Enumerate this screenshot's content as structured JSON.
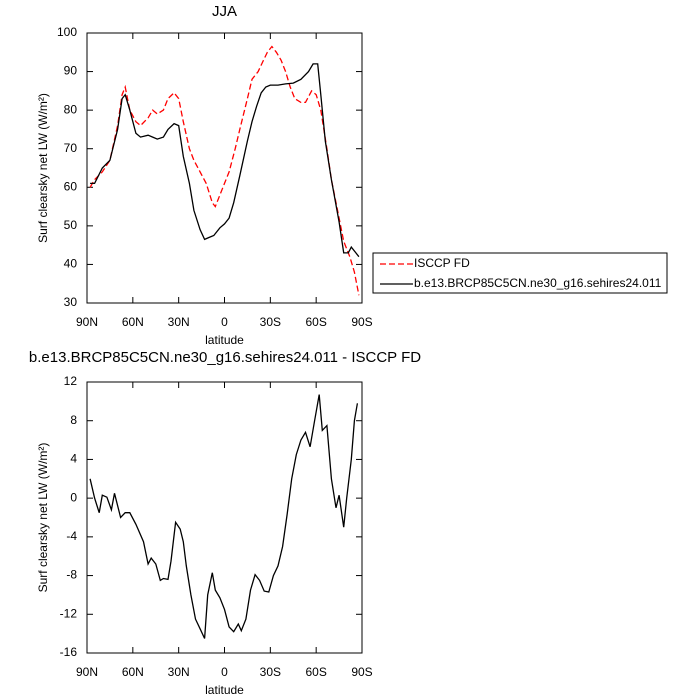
{
  "chart_data": [
    {
      "type": "line",
      "title": "JJA",
      "xlabel": "latitude",
      "ylabel": "Surf clearsky net LW (W/m²)",
      "xlim": [
        90,
        -90
      ],
      "xticks": [
        {
          "value": 90,
          "label": "90N"
        },
        {
          "value": 60,
          "label": "60N"
        },
        {
          "value": 30,
          "label": "30N"
        },
        0,
        {
          "value": -30,
          "label": "30S"
        },
        {
          "value": -60,
          "label": "60S"
        },
        {
          "value": -90,
          "label": "90S"
        }
      ],
      "ylim": [
        30,
        100
      ],
      "yticks": [
        30,
        40,
        50,
        60,
        70,
        80,
        90,
        100
      ],
      "legend": "outside-right",
      "series": [
        {
          "name": "ISCCP FD",
          "color": "#ff0000",
          "line_style": "dashed",
          "x": [
            88,
            85,
            80,
            75,
            70,
            67,
            65,
            62,
            58,
            55,
            50,
            47,
            44,
            40,
            37,
            33,
            30,
            27,
            23,
            20,
            16,
            12,
            8,
            6,
            3,
            0,
            -3,
            -7,
            -10,
            -15,
            -18,
            -22,
            -25,
            -28,
            -31,
            -34,
            -37,
            -40,
            -43,
            -46,
            -50,
            -53,
            -57,
            -60,
            -63,
            -67,
            -70,
            -75,
            -78,
            -82,
            -85,
            -88
          ],
          "values": [
            60,
            62,
            64,
            67,
            76,
            84,
            86,
            80,
            77,
            76,
            78,
            80,
            79,
            80,
            83,
            84.5,
            83,
            77,
            70,
            67,
            64,
            61,
            56,
            55,
            58,
            61,
            64,
            70,
            75,
            83,
            88,
            90,
            92.5,
            95,
            96.5,
            95,
            93,
            90,
            86,
            83,
            82,
            82,
            85,
            84,
            80,
            70,
            62,
            52,
            46,
            42,
            38,
            32
          ]
        },
        {
          "name": "b.e13.BRCP85C5CN.ne30_g16.sehires24.011",
          "color": "#000000",
          "line_style": "solid",
          "x": [
            88,
            85,
            80,
            75,
            70,
            67,
            65,
            62,
            58,
            55,
            50,
            47,
            44,
            40,
            37,
            33,
            30,
            27,
            23,
            20,
            16,
            13,
            10,
            7,
            3,
            0,
            -3,
            -6,
            -10,
            -15,
            -18,
            -21,
            -24,
            -27,
            -30,
            -35,
            -40,
            -45,
            -50,
            -55,
            -58,
            -61,
            -63,
            -66,
            -70,
            -75,
            -78,
            -81,
            -83,
            -86,
            -88
          ],
          "values": [
            61,
            61,
            65,
            67,
            75,
            83,
            84,
            80,
            74,
            73,
            73.5,
            73,
            72.5,
            73,
            75,
            76.5,
            76,
            68,
            61,
            54,
            49,
            46.5,
            47,
            47.5,
            49.5,
            50.5,
            52,
            56,
            63,
            72,
            77,
            81,
            84.5,
            86,
            86.5,
            86.5,
            86.8,
            87,
            88,
            90,
            92,
            92,
            84,
            72,
            62,
            51,
            43,
            43,
            44.5,
            43,
            42
          ]
        }
      ]
    },
    {
      "type": "line",
      "title": "b.e13.BRCP85C5CN.ne30_g16.sehires24.011 - ISCCP FD",
      "xlabel": "latitude",
      "ylabel": "Surf clearsky net LW (W/m²)",
      "xlim": [
        90,
        -90
      ],
      "xticks": [
        {
          "value": 90,
          "label": "90N"
        },
        {
          "value": 60,
          "label": "60N"
        },
        {
          "value": 30,
          "label": "30N"
        },
        0,
        {
          "value": -30,
          "label": "30S"
        },
        {
          "value": -60,
          "label": "60S"
        },
        {
          "value": -90,
          "label": "90S"
        }
      ],
      "ylim": [
        -16,
        12
      ],
      "yticks": [
        -16,
        -12,
        -8,
        -4,
        0,
        4,
        8,
        12
      ],
      "series": [
        {
          "color": "#000000",
          "line_style": "solid",
          "x": [
            88,
            85,
            82,
            80,
            77,
            74,
            72,
            68,
            65,
            62,
            58,
            53,
            50,
            48,
            45,
            42,
            40,
            37,
            35,
            32,
            29,
            27,
            25,
            22,
            19,
            16,
            13,
            11,
            8,
            6,
            3,
            0,
            -3,
            -6,
            -9,
            -11,
            -14,
            -17,
            -20,
            -23,
            -26,
            -29,
            -32,
            -35,
            -38,
            -41,
            -44,
            -47,
            -50,
            -53,
            -56,
            -59,
            -62,
            -64,
            -67,
            -70,
            -73,
            -75,
            -78,
            -80,
            -83,
            -85,
            -87
          ],
          "values": [
            2,
            0,
            -1.5,
            0.3,
            0.1,
            -1.2,
            0.5,
            -2,
            -1.5,
            -1.5,
            -2.7,
            -4.5,
            -6.8,
            -6.2,
            -6.8,
            -8.5,
            -8.3,
            -8.4,
            -6.5,
            -2.5,
            -3.2,
            -4.5,
            -7,
            -10,
            -12.5,
            -13.5,
            -14.5,
            -10,
            -7.7,
            -9.5,
            -10.3,
            -11.5,
            -13.3,
            -13.8,
            -13,
            -13.7,
            -12.5,
            -9.5,
            -7.9,
            -8.5,
            -9.6,
            -9.7,
            -8,
            -7,
            -5,
            -1.7,
            2,
            4.5,
            6,
            6.8,
            5.3,
            8,
            10.7,
            7,
            7.5,
            2,
            -1,
            0.3,
            -3,
            0,
            4,
            8,
            9.8
          ]
        }
      ]
    }
  ]
}
